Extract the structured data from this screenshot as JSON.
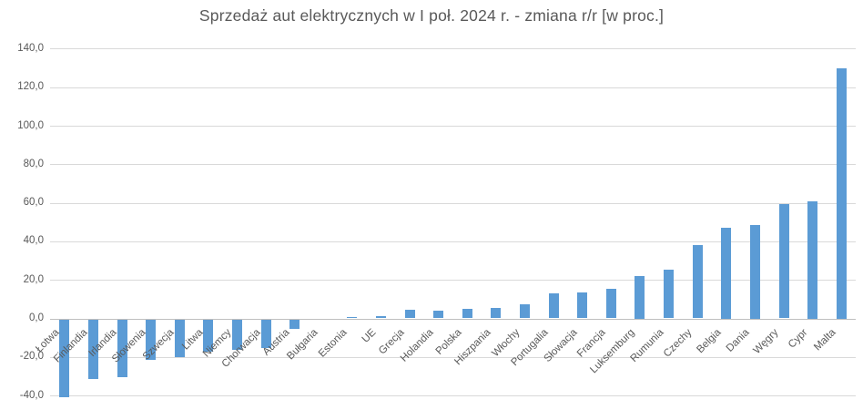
{
  "chart_data": {
    "type": "bar",
    "title": "Sprzedaż aut elektrycznych w I poł. 2024 r. - zmiana r/r [w proc.]",
    "categories": [
      "Łotwa",
      "Finlandia",
      "Irlandia",
      "Słowenia",
      "Szwecja",
      "Litwa",
      "Niemcy",
      "Chorwacja",
      "Austria",
      "Bułgaria",
      "Estonia",
      "UE",
      "Grecja",
      "Holandia",
      "Polska",
      "Hiszpania",
      "Włochy",
      "Portugalia",
      "Słowacja",
      "Francja",
      "Luksemburg",
      "Rumunia",
      "Czechy",
      "Belgia",
      "Dania",
      "Węgry",
      "Cypr",
      "Malta"
    ],
    "values": [
      -40.5,
      -31.0,
      -30.1,
      -21.1,
      -19.8,
      -16.7,
      -15.7,
      -14.9,
      -4.9,
      0.0,
      0.8,
      1.3,
      4.4,
      4.1,
      4.8,
      5.6,
      7.5,
      12.8,
      13.6,
      15.4,
      22.2,
      25.4,
      38.0,
      47.3,
      48.7,
      59.4,
      61.0,
      130.0
    ],
    "xlabel": "",
    "ylabel": "",
    "ylim": [
      -40,
      140
    ],
    "y_ticks": [
      140,
      120,
      100,
      80,
      60,
      40,
      20,
      0,
      -20,
      -40
    ],
    "y_tick_labels": [
      "140,0",
      "120,0",
      "100,0",
      "80,0",
      "60,0",
      "40,0",
      "20,0",
      "0,0",
      "-20,0",
      "-40,0"
    ],
    "grid": true,
    "legend": false
  },
  "colors": {
    "bar": "#5b9bd5",
    "gridline": "#d9d9d9",
    "axis_line": "#bfbfbf",
    "text": "#595959"
  }
}
